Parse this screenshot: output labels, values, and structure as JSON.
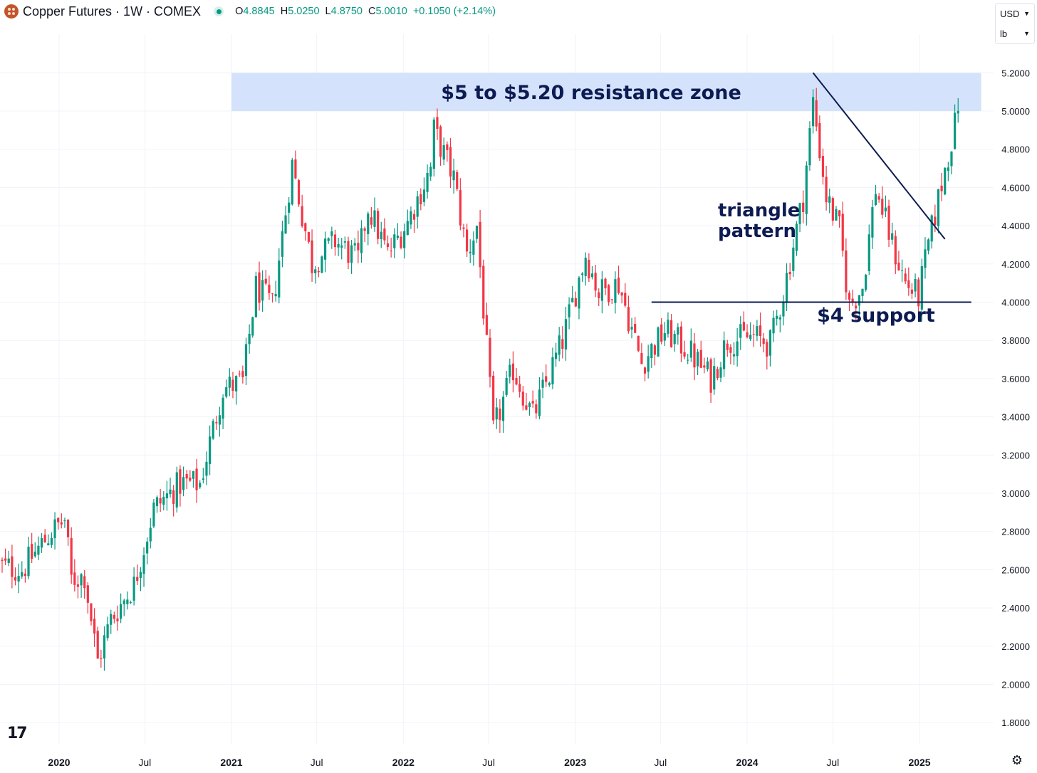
{
  "header": {
    "title": "Copper Futures · 1W · COMEX",
    "ohlc": {
      "o_label": "O",
      "o": "4.8845",
      "h_label": "H",
      "h": "5.0250",
      "l_label": "L",
      "l": "4.8750",
      "c_label": "C",
      "c": "5.0010",
      "change": "+0.1050 (+2.14%)"
    },
    "currency": "USD",
    "unit": "lb"
  },
  "colors": {
    "up": "#089981",
    "down": "#f23645",
    "zone": "#d4e3fb",
    "annotation": "#0d1b52",
    "grid": "#f0f3fa"
  },
  "icons": {
    "logo": "tradingview-logo",
    "settings": "gear-icon",
    "symbol": "copper-icon",
    "status": "market-open-dot"
  },
  "chart_data": {
    "type": "candlestick",
    "title": "Copper Futures · 1W · COMEX",
    "ylim": [
      1.7,
      5.35
    ],
    "y_ticks": [
      "5.2000",
      "5.0000",
      "4.8000",
      "4.6000",
      "4.4000",
      "4.2000",
      "4.0000",
      "3.8000",
      "3.6000",
      "3.4000",
      "3.2000",
      "3.0000",
      "2.8000",
      "2.6000",
      "2.4000",
      "2.2000",
      "2.0000",
      "1.8000"
    ],
    "x_ticks": [
      {
        "label": "2020",
        "date": "2020-01-01"
      },
      {
        "label": "Jul",
        "date": "2020-07-01"
      },
      {
        "label": "2021",
        "date": "2021-01-01"
      },
      {
        "label": "Jul",
        "date": "2021-07-01"
      },
      {
        "label": "2022",
        "date": "2022-01-01"
      },
      {
        "label": "Jul",
        "date": "2022-07-01"
      },
      {
        "label": "2023",
        "date": "2023-01-01"
      },
      {
        "label": "Jul",
        "date": "2023-07-01"
      },
      {
        "label": "2024",
        "date": "2024-01-01"
      },
      {
        "label": "Jul",
        "date": "2024-07-01"
      },
      {
        "label": "2025",
        "date": "2025-01-01"
      }
    ],
    "anchors": [
      [
        "2019-08-26",
        2.62
      ],
      [
        "2019-10-14",
        2.6
      ],
      [
        "2019-12-16",
        2.8
      ],
      [
        "2020-01-13",
        2.86
      ],
      [
        "2020-01-27",
        2.55
      ],
      [
        "2020-02-24",
        2.57
      ],
      [
        "2020-03-23",
        2.12
      ],
      [
        "2020-04-20",
        2.34
      ],
      [
        "2020-06-08",
        2.52
      ],
      [
        "2020-07-20",
        2.92
      ],
      [
        "2020-09-14",
        3.05
      ],
      [
        "2020-10-26",
        3.05
      ],
      [
        "2020-12-14",
        3.55
      ],
      [
        "2021-01-25",
        3.58
      ],
      [
        "2021-02-22",
        4.08
      ],
      [
        "2021-03-29",
        3.98
      ],
      [
        "2021-05-10",
        4.72
      ],
      [
        "2021-06-21",
        4.2
      ],
      [
        "2021-08-09",
        4.32
      ],
      [
        "2021-09-27",
        4.22
      ],
      [
        "2021-10-18",
        4.5
      ],
      [
        "2021-11-29",
        4.25
      ],
      [
        "2022-01-10",
        4.42
      ],
      [
        "2022-02-28",
        4.7
      ],
      [
        "2022-03-07",
        4.9
      ],
      [
        "2022-04-18",
        4.65
      ],
      [
        "2022-05-16",
        4.25
      ],
      [
        "2022-06-06",
        4.4
      ],
      [
        "2022-06-27",
        3.75
      ],
      [
        "2022-07-11",
        3.32
      ],
      [
        "2022-08-22",
        3.65
      ],
      [
        "2022-10-03",
        3.4
      ],
      [
        "2022-11-07",
        3.62
      ],
      [
        "2022-12-05",
        3.8
      ],
      [
        "2023-01-23",
        4.25
      ],
      [
        "2023-02-20",
        4.05
      ],
      [
        "2023-04-03",
        4.1
      ],
      [
        "2023-05-22",
        3.68
      ],
      [
        "2023-07-10",
        3.85
      ],
      [
        "2023-08-28",
        3.75
      ],
      [
        "2023-10-16",
        3.6
      ],
      [
        "2023-11-20",
        3.8
      ],
      [
        "2024-01-15",
        3.82
      ],
      [
        "2024-02-19",
        3.78
      ],
      [
        "2024-03-18",
        4.05
      ],
      [
        "2024-04-29",
        4.55
      ],
      [
        "2024-05-20",
        5.05
      ],
      [
        "2024-06-17",
        4.55
      ],
      [
        "2024-07-15",
        4.38
      ],
      [
        "2024-08-05",
        3.98
      ],
      [
        "2024-09-02",
        4.08
      ],
      [
        "2024-09-30",
        4.6
      ],
      [
        "2024-11-04",
        4.3
      ],
      [
        "2024-12-02",
        4.1
      ],
      [
        "2024-12-30",
        4.03
      ],
      [
        "2025-01-20",
        4.3
      ],
      [
        "2025-02-17",
        4.62
      ],
      [
        "2025-03-24",
        5.0
      ]
    ],
    "last_close": 5.001,
    "annotations": {
      "resistance_zone": {
        "label": "$5 to $5.20 resistance zone",
        "y_from": 5.0,
        "y_to": 5.2,
        "x_from": "2021-01-01",
        "x_to": "2025-05-12"
      },
      "support_line": {
        "label": "$4 support",
        "y": 4.0,
        "x_from": "2023-06-12",
        "x_to": "2025-04-21"
      },
      "trendline": {
        "from": [
          "2024-05-20",
          5.2
        ],
        "to": [
          "2025-02-24",
          4.33
        ]
      },
      "pattern_label": {
        "line1": "triangle",
        "line2": "pattern"
      }
    }
  }
}
